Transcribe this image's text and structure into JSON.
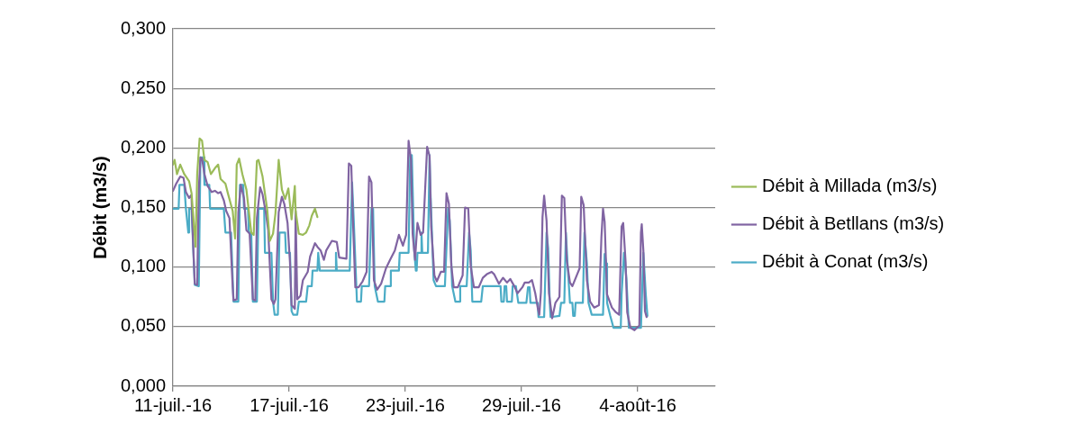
{
  "chart_data": {
    "type": "line",
    "ylabel": "Débit (m3/s)",
    "grid": "y",
    "legend": "right",
    "xlim": [
      "--07-11",
      "--08-08"
    ],
    "xticks": [
      {
        "value": "--07-11",
        "label": "11-juil.-16"
      },
      {
        "value": "--07-17",
        "label": "17-juil.-16"
      },
      {
        "value": "--07-23",
        "label": "23-juil.-16"
      },
      {
        "value": "--07-29",
        "label": "29-juil.-16"
      },
      {
        "value": "--08-04",
        "label": "4-août-16"
      }
    ],
    "ylim": [
      0,
      0.3
    ],
    "yticks": [
      {
        "value": 0,
        "label": "0,000"
      },
      {
        "value": 0.05,
        "label": "0,050"
      },
      {
        "value": 0.1,
        "label": "0,100"
      },
      {
        "value": 0.15,
        "label": "0,150"
      },
      {
        "value": 0.2,
        "label": "0,200"
      },
      {
        "value": 0.25,
        "label": "0,250"
      },
      {
        "value": 0.3,
        "label": "0,300"
      }
    ],
    "series": [
      {
        "name": "Débit à Millada (m3/s)",
        "color": "#9bbb59",
        "x": [
          "--07-11T00:00",
          "--07-11T02:00",
          "--07-11T05:00",
          "--07-11T09:00",
          "--07-11T14:00",
          "--07-11T20:00",
          "--07-11T23:00",
          "--07-12T04:00",
          "--07-12T06:00",
          "--07-12T09:00",
          "--07-12T12:00",
          "--07-12T15:00",
          "--07-12T19:00",
          "--07-12T23:00",
          "--07-13T04:00",
          "--07-13T08:00",
          "--07-13T11:00",
          "--07-13T17:00",
          "--07-13T20:00",
          "--07-14T02:00",
          "--07-14T05:00",
          "--07-14T07:00",
          "--07-14T10:00",
          "--07-14T14:00",
          "--07-14T19:00",
          "--07-15T01:00",
          "--07-15T04:00",
          "--07-15T08:00",
          "--07-15T10:00",
          "--07-15T15:00",
          "--07-15T21:00",
          "--07-16T00:00",
          "--07-16T04:00",
          "--07-16T07:00",
          "--07-16T11:00",
          "--07-16T15:00",
          "--07-16T19:00",
          "--07-16T23:00",
          "--07-17T03:00",
          "--07-17T07:00",
          "--07-17T08:00",
          "--07-17T12:00",
          "--07-17T17:00",
          "--07-17T21:00",
          "--07-18T01:00",
          "--07-18T04:00",
          "--07-18T08:00",
          "--07-18T11:00"
        ],
        "values": [
          0.186,
          0.19,
          0.178,
          0.186,
          0.178,
          0.172,
          0.162,
          0.117,
          0.178,
          0.208,
          0.206,
          0.19,
          0.188,
          0.178,
          0.183,
          0.186,
          0.174,
          0.17,
          0.162,
          0.147,
          0.124,
          0.186,
          0.191,
          0.178,
          0.165,
          0.129,
          0.127,
          0.189,
          0.19,
          0.176,
          0.147,
          0.122,
          0.128,
          0.145,
          0.19,
          0.165,
          0.157,
          0.166,
          0.14,
          0.168,
          0.147,
          0.128,
          0.127,
          0.129,
          0.135,
          0.143,
          0.149,
          0.142
        ]
      },
      {
        "name": "Débit à Betllans (m3/s)",
        "color": "#8064a2",
        "x": [
          "--07-11T00:00",
          "--07-11T04:00",
          "--07-11T09:00",
          "--07-11T13:00",
          "--07-11T16:00",
          "--07-11T20:00",
          "--07-11T22:00",
          "--07-11T23:00",
          "--07-12T01:00",
          "--07-12T03:00",
          "--07-12T06:00",
          "--07-12T08:00",
          "--07-12T10:00",
          "--07-12T12:00",
          "--07-12T15:00",
          "--07-12T19:00",
          "--07-13T00:00",
          "--07-13T04:00",
          "--07-13T08:00",
          "--07-13T11:00",
          "--07-13T15:00",
          "--07-13T18:00",
          "--07-13T22:00",
          "--07-14T02:00",
          "--07-14T03:00",
          "--07-14T07:00",
          "--07-14T09:00",
          "--07-14T12:00",
          "--07-14T16:00",
          "--07-14T19:00",
          "--07-14T23:00",
          "--07-15T03:00",
          "--07-15T06:00",
          "--07-15T08:00",
          "--07-15T12:00",
          "--07-15T15:00",
          "--07-15T19:00",
          "--07-15T22:00",
          "--07-16T02:00",
          "--07-16T05:00",
          "--07-16T07:00",
          "--07-16T11:00",
          "--07-16T15:00",
          "--07-16T18:00",
          "--07-16T22:00",
          "--07-17T01:00",
          "--07-17T03:00",
          "--07-17T07:00",
          "--07-17T08:00",
          "--07-17T10:00",
          "--07-17T14:00",
          "--07-17T17:00",
          "--07-17T23:00",
          "--07-18T02:00",
          "--07-18T08:00",
          "--07-18T11:00",
          "--07-18T15:00",
          "--07-18T19:00",
          "--07-18T22:00",
          "--07-19T05:00",
          "--07-19T11:00",
          "--07-19T14:00",
          "--07-19T23:00",
          "--07-20T02:00",
          "--07-20T05:00",
          "--07-20T07:00",
          "--07-20T10:00",
          "--07-20T14:00",
          "--07-20T19:00",
          "--07-21T00:00",
          "--07-21T03:00",
          "--07-21T06:00",
          "--07-21T09:00",
          "--07-21T13:00",
          "--07-21T18:00",
          "--07-22T00:00",
          "--07-22T05:00",
          "--07-22T11:00",
          "--07-22T16:00",
          "--07-22T21:00",
          "--07-23T01:00",
          "--07-23T04:00",
          "--07-23T07:00",
          "--07-23T09:00",
          "--07-23T12:00",
          "--07-23T15:00",
          "--07-23T19:00",
          "--07-23T22:00",
          "--07-24T03:00",
          "--07-24T06:00",
          "--07-24T08:00",
          "--07-24T12:00",
          "--07-24T15:00",
          "--07-24T20:00",
          "--07-25T00:00",
          "--07-25T03:00",
          "--07-25T06:00",
          "--07-25T09:00",
          "--07-25T12:00",
          "--07-25T17:00",
          "--07-25T23:00",
          "--07-26T02:00",
          "--07-26T06:00",
          "--07-26T09:00",
          "--07-26T13:00",
          "--07-26T19:00",
          "--07-27T00:00",
          "--07-27T05:00",
          "--07-27T11:00",
          "--07-27T14:00",
          "--07-27T20:00",
          "--07-28T01:00",
          "--07-28T06:00",
          "--07-28T10:00",
          "--07-28T15:00",
          "--07-28T19:00",
          "--07-29T01:00",
          "--07-29T04:00",
          "--07-29T09:00",
          "--07-29T13:00",
          "--07-29T17:00",
          "--07-29T20:00",
          "--07-29T22:00",
          "--07-30T00:00",
          "--07-30T02:00",
          "--07-30T04:00",
          "--07-30T07:00",
          "--07-30T10:00",
          "--07-30T14:00",
          "--07-30T18:00",
          "--07-30T23:00",
          "--07-31T02:00",
          "--07-31T05:00",
          "--07-31T08:00",
          "--07-31T12:00",
          "--07-31T15:00",
          "--07-31T21:00",
          "--08-01T00:00",
          "--08-01T02:00",
          "--08-01T05:00",
          "--08-01T09:00",
          "--08-01T13:00",
          "--08-01T18:00",
          "--08-02T00:00",
          "--08-02T03:00",
          "--08-02T05:00",
          "--08-02T07:00",
          "--08-02T10:00",
          "--08-02T16:00",
          "--08-02T21:00",
          "--08-03T01:00",
          "--08-03T04:00",
          "--08-03T06:00",
          "--08-03T09:00",
          "--08-03T11:00",
          "--08-03T15:00",
          "--08-03T20:00",
          "--08-04T02:00",
          "--08-04T04:00",
          "--08-04T05:00",
          "--08-04T07:00",
          "--08-04T09:00",
          "--08-04T11:00"
        ],
        "values": [
          0.164,
          0.17,
          0.176,
          0.175,
          0.163,
          0.158,
          0.16,
          0.158,
          0.119,
          0.086,
          0.085,
          0.165,
          0.192,
          0.191,
          0.178,
          0.168,
          0.163,
          0.164,
          0.162,
          0.163,
          0.156,
          0.147,
          0.141,
          0.083,
          0.072,
          0.073,
          0.146,
          0.169,
          0.158,
          0.131,
          0.128,
          0.073,
          0.072,
          0.141,
          0.167,
          0.161,
          0.146,
          0.131,
          0.073,
          0.069,
          0.073,
          0.146,
          0.159,
          0.153,
          0.137,
          0.104,
          0.068,
          0.065,
          0.147,
          0.073,
          0.076,
          0.089,
          0.096,
          0.109,
          0.12,
          0.117,
          0.114,
          0.106,
          0.114,
          0.122,
          0.121,
          0.108,
          0.107,
          0.187,
          0.185,
          0.14,
          0.083,
          0.083,
          0.088,
          0.096,
          0.176,
          0.171,
          0.089,
          0.081,
          0.086,
          0.099,
          0.106,
          0.114,
          0.127,
          0.118,
          0.127,
          0.206,
          0.19,
          0.128,
          0.106,
          0.137,
          0.127,
          0.129,
          0.201,
          0.193,
          0.134,
          0.093,
          0.088,
          0.096,
          0.096,
          0.162,
          0.153,
          0.101,
          0.083,
          0.083,
          0.093,
          0.15,
          0.149,
          0.101,
          0.083,
          0.083,
          0.091,
          0.094,
          0.096,
          0.094,
          0.086,
          0.091,
          0.087,
          0.09,
          0.084,
          0.078,
          0.083,
          0.087,
          0.087,
          0.089,
          0.078,
          0.066,
          0.06,
          0.079,
          0.142,
          0.16,
          0.139,
          0.078,
          0.057,
          0.07,
          0.075,
          0.16,
          0.158,
          0.106,
          0.087,
          0.084,
          0.094,
          0.099,
          0.159,
          0.152,
          0.089,
          0.071,
          0.066,
          0.068,
          0.125,
          0.149,
          0.138,
          0.077,
          0.066,
          0.062,
          0.06,
          0.134,
          0.137,
          0.104,
          0.062,
          0.049,
          0.047,
          0.051,
          0.129,
          0.136,
          0.114,
          0.063,
          0.058
        ]
      },
      {
        "name": "Débit à Conat (m3/s)",
        "color": "#4bacc6",
        "x": [
          "--07-11T00:00",
          "--07-11T07:00",
          "--07-11T08:00",
          "--07-11T14:00",
          "--07-11T16:00",
          "--07-11T19:00",
          "--07-11T20:00",
          "--07-11T23:00",
          "--07-12T03:00",
          "--07-12T08:00",
          "--07-12T10:00",
          "--07-12T14:00",
          "--07-12T15:00",
          "--07-12T21:00",
          "--07-12T22:00",
          "--07-13T15:00",
          "--07-13T17:00",
          "--07-14T00:00",
          "--07-14T03:00",
          "--07-14T09:00",
          "--07-14T11:00",
          "--07-14T15:00",
          "--07-14T16:00",
          "--07-14T21:00",
          "--07-14T22:00",
          "--07-15T01:00",
          "--07-15T03:00",
          "--07-15T08:00",
          "--07-15T10:00",
          "--07-15T17:00",
          "--07-15T18:00",
          "--07-16T02:00",
          "--07-16T04:00",
          "--07-16T06:00",
          "--07-16T10:00",
          "--07-16T12:00",
          "--07-16T19:00",
          "--07-16T20:00",
          "--07-17T01:00",
          "--07-17T03:00",
          "--07-17T05:00",
          "--07-17T10:00",
          "--07-17T12:00",
          "--07-17T21:00",
          "--07-17T23:00",
          "--07-18T04:00",
          "--07-18T05:00",
          "--07-18T11:00",
          "--07-18T12:00",
          "--07-18T14:00",
          "--07-18T15:00",
          "--07-19T09:00",
          "--07-19T10:00",
          "--07-19T11:00",
          "--07-20T03:00",
          "--07-20T06:00",
          "--07-20T08:00",
          "--07-20T12:00",
          "--07-20T17:00",
          "--07-20T18:00",
          "--07-21T03:00",
          "--07-21T06:00",
          "--07-21T08:00",
          "--07-21T10:00",
          "--07-21T14:00",
          "--07-21T22:00",
          "--07-21T23:00",
          "--07-22T05:00",
          "--07-22T06:00",
          "--07-22T16:00",
          "--07-22T17:00",
          "--07-23T04:00",
          "--07-23T06:00",
          "--07-23T08:00",
          "--07-23T11:00",
          "--07-23T13:00",
          "--07-23T14:00",
          "--07-23T15:00",
          "--07-23T19:00",
          "--07-23T20:00",
          "--07-23T21:00",
          "--07-24T04:00",
          "--07-24T06:00",
          "--07-24T07:00",
          "--07-24T11:00",
          "--07-24T14:00",
          "--07-25T01:00",
          "--07-25T05:00",
          "--07-25T07:00",
          "--07-25T10:00",
          "--07-25T14:00",
          "--07-25T19:00",
          "--07-25T20:00",
          "--07-26T04:00",
          "--07-26T07:00",
          "--07-26T09:00",
          "--07-26T11:00",
          "--07-26T22:00",
          "--07-27T00:00",
          "--07-27T22:00",
          "--07-27T23:00",
          "--07-28T02:00",
          "--07-28T03:00",
          "--07-28T05:00",
          "--07-28T06:00",
          "--07-28T12:00",
          "--07-28T13:00",
          "--07-28T17:00",
          "--07-28T20:00",
          "--07-29T06:00",
          "--07-29T08:00",
          "--07-29T10:00",
          "--07-29T11:00",
          "--07-29T20:00",
          "--07-29T21:00",
          "--07-30T04:00",
          "--07-30T07:00",
          "--07-30T09:00",
          "--07-30T11:00",
          "--07-30T12:00",
          "--07-30T23:00",
          "--07-31T01:00",
          "--07-31T05:00",
          "--07-31T07:00",
          "--07-31T09:00",
          "--07-31T12:00",
          "--07-31T15:00",
          "--07-31T16:00",
          "--07-31T18:00",
          "--07-31T19:00",
          "--08-01T04:00",
          "--08-01T06:00",
          "--08-01T09:00",
          "--08-01T11:00",
          "--08-01T15:00",
          "--08-02T05:00",
          "--08-02T07:00",
          "--08-02T09:00",
          "--08-02T10:00",
          "--08-02T14:00",
          "--08-02T18:00",
          "--08-03T03:00",
          "--08-03T04:00",
          "--08-03T07:00",
          "--08-03T10:00",
          "--08-03T13:00",
          "--08-04T04:00",
          "--08-04T07:00",
          "--08-04T10:00",
          "--08-04T12:00"
        ],
        "values": [
          0.149,
          0.149,
          0.169,
          0.169,
          0.149,
          0.129,
          0.149,
          0.149,
          0.085,
          0.084,
          0.192,
          0.192,
          0.169,
          0.169,
          0.149,
          0.149,
          0.129,
          0.129,
          0.071,
          0.071,
          0.169,
          0.169,
          0.149,
          0.149,
          0.129,
          0.129,
          0.071,
          0.071,
          0.149,
          0.149,
          0.112,
          0.112,
          0.071,
          0.06,
          0.06,
          0.129,
          0.129,
          0.112,
          0.112,
          0.063,
          0.06,
          0.06,
          0.071,
          0.071,
          0.084,
          0.084,
          0.097,
          0.097,
          0.112,
          0.097,
          0.097,
          0.097,
          0.112,
          0.097,
          0.097,
          0.171,
          0.14,
          0.071,
          0.071,
          0.084,
          0.084,
          0.149,
          0.149,
          0.084,
          0.071,
          0.071,
          0.084,
          0.084,
          0.097,
          0.097,
          0.112,
          0.112,
          0.194,
          0.194,
          0.114,
          0.097,
          0.097,
          0.112,
          0.112,
          0.129,
          0.112,
          0.112,
          0.194,
          0.166,
          0.089,
          0.084,
          0.084,
          0.149,
          0.139,
          0.084,
          0.071,
          0.071,
          0.084,
          0.084,
          0.129,
          0.114,
          0.071,
          0.071,
          0.084,
          0.084,
          0.071,
          0.071,
          0.084,
          0.084,
          0.071,
          0.071,
          0.084,
          0.084,
          0.07,
          0.07,
          0.083,
          0.083,
          0.07,
          0.07,
          0.058,
          0.058,
          0.129,
          0.116,
          0.07,
          0.058,
          0.059,
          0.07,
          0.07,
          0.129,
          0.103,
          0.07,
          0.07,
          0.059,
          0.059,
          0.07,
          0.07,
          0.129,
          0.103,
          0.07,
          0.06,
          0.06,
          0.111,
          0.103,
          0.07,
          0.059,
          0.049,
          0.049,
          0.077,
          0.112,
          0.09,
          0.049,
          0.049,
          0.112,
          0.077,
          0.059
        ]
      }
    ]
  }
}
